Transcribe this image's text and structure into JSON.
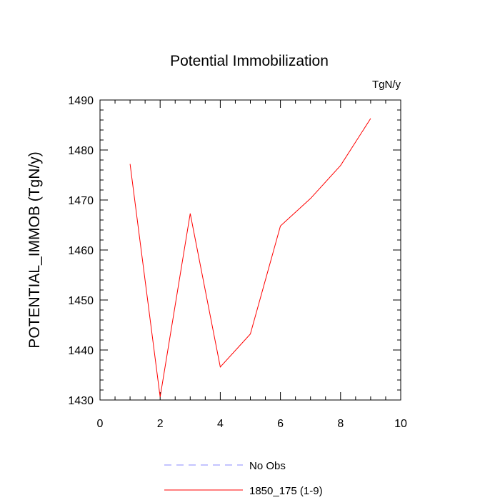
{
  "chart_data": {
    "type": "line",
    "title": "Potential Immobilization",
    "units_label": "TgN/y",
    "xlabel": "",
    "ylabel": "POTENTIAL_IMMOB  (TgN/y)",
    "xlim": [
      0,
      10
    ],
    "ylim": [
      1430,
      1490
    ],
    "x_ticks": [
      0,
      2,
      4,
      6,
      8,
      10
    ],
    "y_ticks": [
      1430,
      1440,
      1450,
      1460,
      1470,
      1480,
      1490
    ],
    "grid": false,
    "legend_position": "bottom",
    "series": [
      {
        "name": "1850_175 (1-9)",
        "color": "#ff0000",
        "dash": "solid",
        "x": [
          1,
          2,
          3,
          4,
          5,
          6,
          7,
          8,
          9
        ],
        "y": [
          1477.2,
          1430.6,
          1467.3,
          1436.6,
          1443.2,
          1464.8,
          1470.3,
          1476.9,
          1486.3
        ]
      }
    ],
    "legend": [
      {
        "label": "No Obs",
        "color": "#8a8aff",
        "dash": "dashed"
      },
      {
        "label": "1850_175 (1-9)",
        "color": "#ff0000",
        "dash": "solid"
      }
    ]
  }
}
